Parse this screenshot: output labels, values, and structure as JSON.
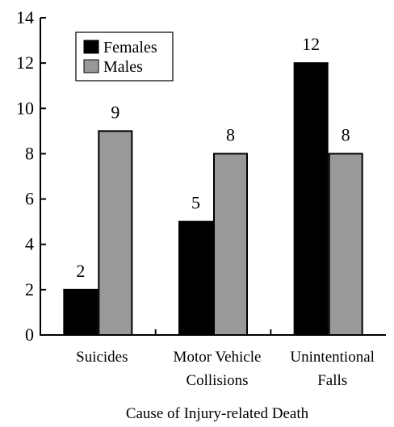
{
  "chart_data": {
    "type": "bar",
    "categories": [
      [
        "Suicides"
      ],
      [
        "Motor Vehicle",
        "Collisions"
      ],
      [
        "Unintentional",
        "Falls"
      ]
    ],
    "series": [
      {
        "name": "Females",
        "values": [
          2,
          5,
          12
        ],
        "color": "#000000"
      },
      {
        "name": "Males",
        "values": [
          9,
          8,
          8
        ],
        "color": "#999999"
      }
    ],
    "data_labels": [
      [
        "2",
        "5",
        "12"
      ],
      [
        "9",
        "8",
        "8"
      ]
    ],
    "title": "",
    "xlabel": "Cause of Injury-related Death",
    "ylabel": "",
    "ylim": [
      0,
      14
    ],
    "yticks": [
      "0",
      "2",
      "4",
      "6",
      "8",
      "10",
      "12",
      "14"
    ],
    "grid": false,
    "legend_position": "top-left"
  }
}
